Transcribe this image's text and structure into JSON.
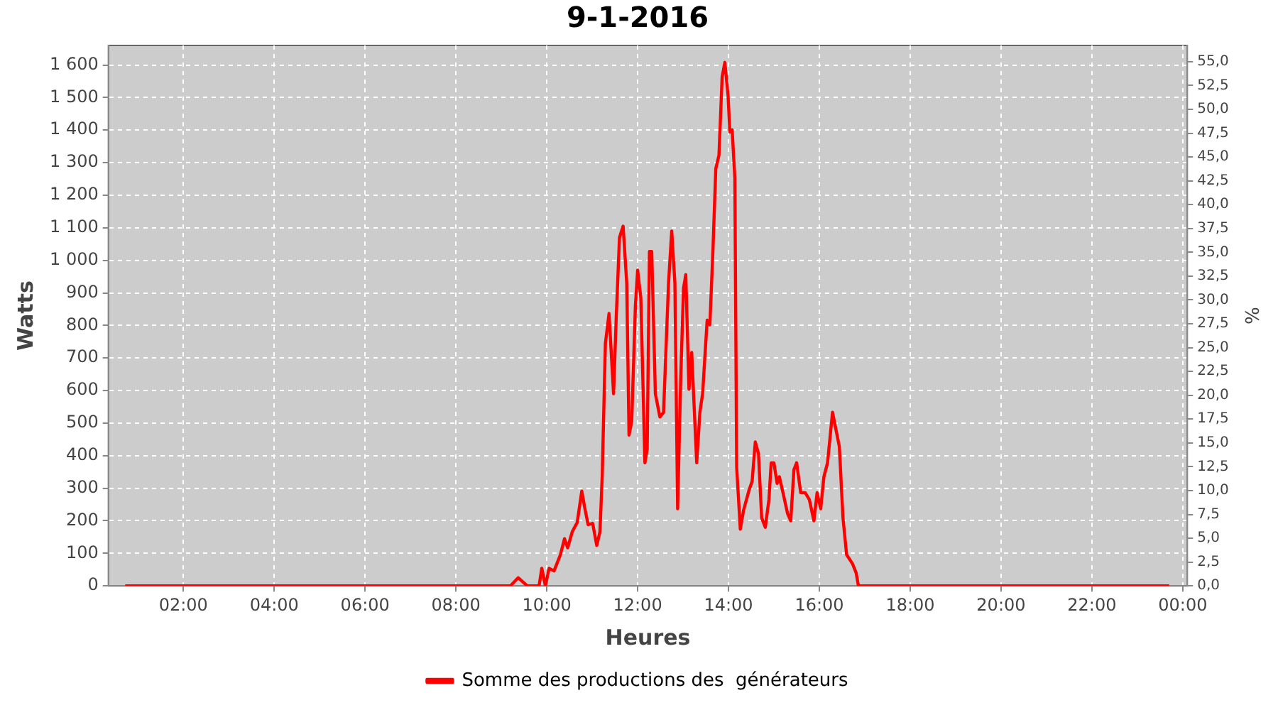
{
  "chart_data": {
    "type": "line",
    "title": "9-1-2016",
    "xlabel": "Heures",
    "ylabel": "Watts",
    "y2label": "%",
    "xlim": [
      0.35,
      24.1
    ],
    "xticks": [
      {
        "value": 2,
        "label": "02:00"
      },
      {
        "value": 4,
        "label": "04:00"
      },
      {
        "value": 6,
        "label": "06:00"
      },
      {
        "value": 8,
        "label": "08:00"
      },
      {
        "value": 10,
        "label": "10:00"
      },
      {
        "value": 12,
        "label": "12:00"
      },
      {
        "value": 14,
        "label": "14:00"
      },
      {
        "value": 16,
        "label": "16:00"
      },
      {
        "value": 18,
        "label": "18:00"
      },
      {
        "value": 20,
        "label": "20:00"
      },
      {
        "value": 22,
        "label": "22:00"
      },
      {
        "value": 24,
        "label": "00:00"
      }
    ],
    "ylim": [
      0,
      1660
    ],
    "yticks": [
      0,
      100,
      200,
      300,
      400,
      500,
      600,
      700,
      800,
      900,
      {
        "value": 1000,
        "label": "1 000"
      },
      {
        "value": 1100,
        "label": "1 100"
      },
      {
        "value": 1200,
        "label": "1 200"
      },
      {
        "value": 1300,
        "label": "1 300"
      },
      {
        "value": 1400,
        "label": "1 400"
      },
      {
        "value": 1500,
        "label": "1 500"
      },
      {
        "value": 1600,
        "label": "1 600"
      }
    ],
    "y2lim": [
      0,
      56.7
    ],
    "y2ticks": [
      {
        "value": 0,
        "label": "0,0"
      },
      {
        "value": 2.5,
        "label": "2,5"
      },
      {
        "value": 5,
        "label": "5,0"
      },
      {
        "value": 7.5,
        "label": "7,5"
      },
      {
        "value": 10,
        "label": "10,0"
      },
      {
        "value": 12.5,
        "label": "12,5"
      },
      {
        "value": 15,
        "label": "15,0"
      },
      {
        "value": 17.5,
        "label": "17,5"
      },
      {
        "value": 20,
        "label": "20,0"
      },
      {
        "value": 22.5,
        "label": "22,5"
      },
      {
        "value": 25,
        "label": "25,0"
      },
      {
        "value": 27.5,
        "label": "27,5"
      },
      {
        "value": 30,
        "label": "30,0"
      },
      {
        "value": 32.5,
        "label": "32,5"
      },
      {
        "value": 35,
        "label": "35,0"
      },
      {
        "value": 37.5,
        "label": "37,5"
      },
      {
        "value": 40,
        "label": "40,0"
      },
      {
        "value": 42.5,
        "label": "42,5"
      },
      {
        "value": 45,
        "label": "45,0"
      },
      {
        "value": 47.5,
        "label": "47,5"
      },
      {
        "value": 50,
        "label": "50,0"
      },
      {
        "value": 52.5,
        "label": "52,5"
      },
      {
        "value": 55,
        "label": "55,0"
      }
    ],
    "grid": true,
    "legend": "bottom",
    "series": [
      {
        "name": "Somme des productions des  générateurs",
        "color": "#ff0000",
        "x": [
          0.72,
          9.2,
          9.37,
          9.57,
          9.83,
          9.89,
          9.97,
          10.05,
          10.16,
          10.3,
          10.39,
          10.46,
          10.56,
          10.67,
          10.77,
          10.84,
          10.91,
          11.01,
          11.1,
          11.17,
          11.22,
          11.29,
          11.37,
          11.47,
          11.53,
          11.6,
          11.68,
          11.76,
          11.81,
          11.87,
          11.95,
          12.0,
          12.07,
          12.16,
          12.21,
          12.26,
          12.31,
          12.39,
          12.49,
          12.57,
          12.68,
          12.75,
          12.82,
          12.88,
          12.95,
          13.01,
          13.06,
          13.13,
          13.19,
          13.3,
          13.37,
          13.43,
          13.53,
          13.59,
          13.66,
          13.72,
          13.79,
          13.86,
          13.92,
          13.99,
          14.03,
          14.08,
          14.14,
          14.18,
          14.26,
          14.33,
          14.45,
          14.52,
          14.59,
          14.66,
          14.73,
          14.81,
          14.89,
          14.94,
          15.0,
          15.07,
          15.12,
          15.2,
          15.3,
          15.37,
          15.44,
          15.5,
          15.59,
          15.69,
          15.78,
          15.88,
          15.95,
          16.03,
          16.1,
          16.18,
          16.24,
          16.29,
          16.37,
          16.44,
          16.52,
          16.6,
          16.73,
          16.81,
          16.86,
          23.7
        ],
        "values": [
          0,
          0,
          25,
          0,
          0,
          54,
          0,
          54,
          46,
          96,
          145,
          117,
          166,
          195,
          291,
          237,
          188,
          192,
          124,
          166,
          336,
          745,
          837,
          590,
          830,
          1070,
          1105,
          930,
          463,
          505,
          858,
          970,
          885,
          378,
          420,
          1027,
          1027,
          590,
          519,
          533,
          930,
          1090,
          930,
          237,
          646,
          914,
          956,
          604,
          717,
          378,
          533,
          590,
          816,
          802,
          1041,
          1281,
          1323,
          1563,
          1608,
          1507,
          1394,
          1401,
          1253,
          364,
          174,
          231,
          293,
          321,
          442,
          407,
          209,
          180,
          265,
          378,
          378,
          315,
          335,
          286,
          222,
          200,
          357,
          378,
          286,
          286,
          265,
          200,
          286,
          237,
          335,
          378,
          463,
          533,
          477,
          428,
          209,
          96,
          68,
          40,
          0,
          0
        ]
      }
    ]
  }
}
